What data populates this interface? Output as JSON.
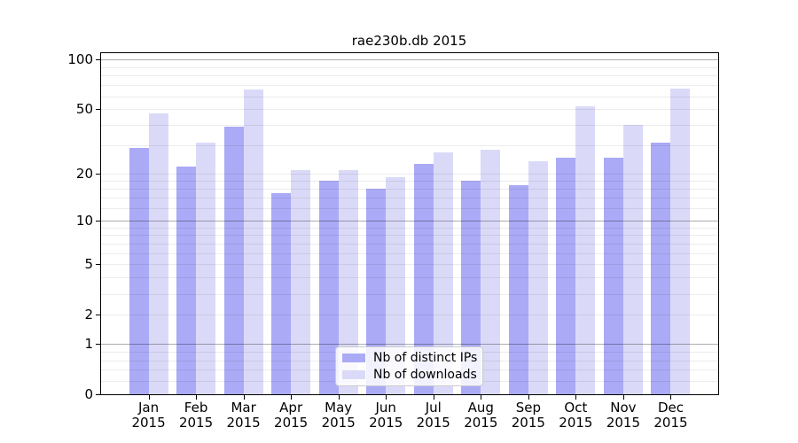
{
  "chart_data": {
    "type": "bar",
    "title": "rae230b.db 2015",
    "categories": [
      "Jan",
      "Feb",
      "Mar",
      "Apr",
      "May",
      "Jun",
      "Jul",
      "Aug",
      "Sep",
      "Oct",
      "Nov",
      "Dec"
    ],
    "year_label": "2015",
    "series": [
      {
        "name": "Nb of distinct IPs",
        "color": "#aaaaf6",
        "values": [
          29,
          22,
          39,
          15,
          18,
          16,
          23,
          18,
          17,
          25,
          25,
          31
        ]
      },
      {
        "name": "Nb of downloads",
        "color": "#dadaf8",
        "values": [
          47,
          31,
          66,
          21,
          21,
          19,
          27,
          28,
          24,
          52,
          40,
          67
        ]
      }
    ],
    "xlabel": "",
    "ylabel": "",
    "yscale": "log1p",
    "ylim": [
      0,
      110
    ],
    "ytick_values": [
      0,
      1,
      2,
      5,
      10,
      20,
      50,
      100
    ],
    "ytick_labels": [
      "0",
      "1",
      "2",
      "5",
      "10",
      "20",
      "50",
      "100"
    ],
    "major_gridline_values": [
      1,
      10,
      100
    ],
    "minor_gridline_values": [
      0.2,
      0.4,
      0.6,
      0.8,
      2,
      3,
      4,
      5,
      6,
      7,
      8,
      9,
      12,
      14,
      16,
      18,
      20,
      30,
      40,
      50,
      60,
      70,
      80,
      90
    ],
    "grid": true,
    "legend_position": "lower center"
  },
  "colors": {
    "background": "#ffffff",
    "spine": "#000000",
    "text": "#000000",
    "grid_minor": "rgba(0,0,0,0.075)",
    "grid_major": "rgba(0,0,0,0.32)",
    "legend_border": "#cccccc",
    "legend_background": "rgba(255,255,255,0.85)"
  }
}
